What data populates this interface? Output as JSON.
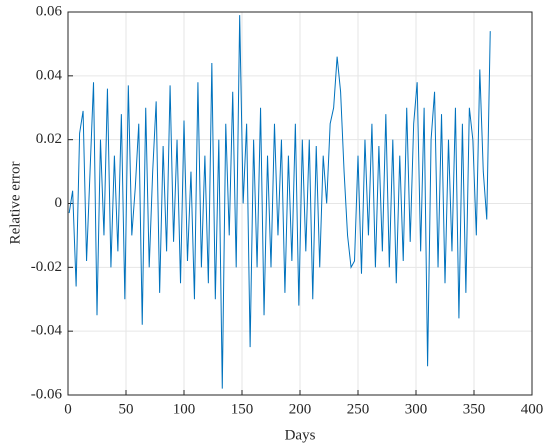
{
  "chart_data": {
    "type": "line",
    "x_label": "Days",
    "y_label": "Relative error",
    "x": [
      1,
      4,
      7,
      10,
      13,
      16,
      19,
      22,
      25,
      28,
      31,
      34,
      37,
      40,
      43,
      46,
      49,
      52,
      55,
      58,
      61,
      64,
      67,
      70,
      73,
      76,
      79,
      82,
      85,
      88,
      91,
      94,
      97,
      100,
      103,
      106,
      109,
      112,
      115,
      118,
      121,
      124,
      127,
      130,
      133,
      136,
      139,
      142,
      145,
      148,
      151,
      154,
      157,
      160,
      163,
      166,
      169,
      172,
      175,
      178,
      181,
      184,
      187,
      190,
      193,
      196,
      199,
      202,
      205,
      208,
      211,
      214,
      217,
      220,
      223,
      226,
      229,
      232,
      235,
      238,
      241,
      244,
      247,
      250,
      253,
      256,
      259,
      262,
      265,
      268,
      271,
      274,
      277,
      280,
      283,
      286,
      289,
      292,
      295,
      298,
      301,
      304,
      307,
      310,
      313,
      316,
      319,
      322,
      325,
      328,
      331,
      334,
      337,
      340,
      343,
      346,
      349,
      352,
      355,
      358,
      361,
      364
    ],
    "series": [
      {
        "name": "Relative error",
        "color": "#0072bd",
        "values": [
          -0.003,
          0.004,
          -0.026,
          0.022,
          0.029,
          -0.018,
          0.01,
          0.038,
          -0.035,
          0.02,
          -0.01,
          0.036,
          -0.02,
          0.015,
          -0.015,
          0.028,
          -0.03,
          0.037,
          -0.01,
          0.005,
          0.025,
          -0.038,
          0.03,
          -0.02,
          0.01,
          0.032,
          -0.028,
          0.018,
          -0.015,
          0.037,
          -0.012,
          0.02,
          -0.025,
          0.026,
          -0.018,
          0.01,
          -0.03,
          0.038,
          -0.02,
          0.015,
          -0.025,
          0.044,
          -0.03,
          0.02,
          -0.058,
          0.025,
          -0.01,
          0.035,
          -0.02,
          0.059,
          0.0,
          0.025,
          -0.045,
          0.02,
          -0.02,
          0.03,
          -0.035,
          0.015,
          -0.02,
          0.025,
          -0.01,
          0.02,
          -0.028,
          0.015,
          -0.018,
          0.025,
          -0.032,
          0.02,
          -0.015,
          0.02,
          -0.03,
          0.018,
          -0.02,
          0.015,
          0.0,
          0.025,
          0.03,
          0.046,
          0.035,
          0.01,
          -0.01,
          -0.02,
          -0.018,
          0.015,
          -0.022,
          0.02,
          -0.01,
          0.025,
          -0.02,
          0.018,
          -0.015,
          0.028,
          -0.02,
          0.02,
          -0.025,
          0.015,
          -0.018,
          0.03,
          -0.012,
          0.025,
          0.038,
          -0.015,
          0.03,
          -0.051,
          0.02,
          0.035,
          -0.02,
          0.028,
          -0.025,
          0.02,
          -0.015,
          0.03,
          -0.036,
          0.025,
          -0.028,
          0.03,
          0.02,
          -0.01,
          0.042,
          0.01,
          -0.005,
          0.054
        ]
      }
    ],
    "xlim": [
      0,
      400
    ],
    "xticks": [
      0,
      50,
      100,
      150,
      200,
      250,
      300,
      350,
      400
    ],
    "ylim": [
      -0.06,
      0.06
    ],
    "yticks": [
      -0.06,
      -0.04,
      -0.02,
      0,
      0.02,
      0.04,
      0.06
    ],
    "grid": true
  }
}
